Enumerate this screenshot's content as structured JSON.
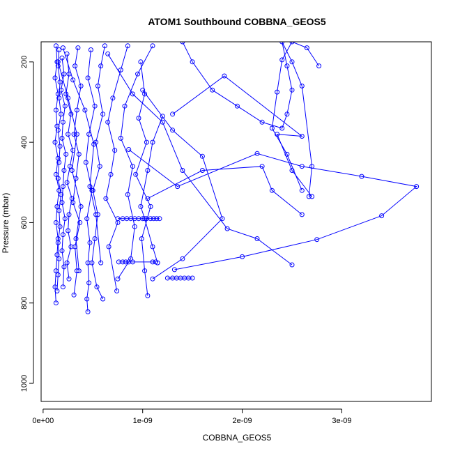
{
  "chart_data": {
    "type": "line",
    "title": "ATOM1 Southbound COBBNA_GEOS5",
    "xlabel": "COBBNA_GEOS5",
    "ylabel": "Pressure (mbar)",
    "xlim": [
      -2e-11,
      3.9e-09
    ],
    "ylim": [
      1045,
      150
    ],
    "y_reversed": true,
    "marker": "open-circle",
    "series_color": "#0000ff",
    "x_ticks": [
      0,
      1e-09,
      2e-09,
      3e-09
    ],
    "x_tick_labels": [
      "0e+00",
      "1e-09",
      "2e-09",
      "3e-09"
    ],
    "y_ticks": [
      200,
      400,
      600,
      800,
      1000
    ],
    "y_tick_labels": [
      "200",
      "400",
      "600",
      "800",
      "1000"
    ],
    "grid": false,
    "legend": "none",
    "series": [
      {
        "x": [
          1.3e-10,
          1.4e-10,
          1.2e-10,
          1.5e-10,
          1.3e-10,
          1.4e-10,
          1.2e-10,
          1.5e-10,
          1.3e-10,
          1.6e-10,
          1.4e-10,
          1.3e-10,
          1.5e-10,
          1.4e-10,
          1.3e-10,
          1.2e-10,
          1.3e-10
        ],
        "y": [
          160,
          200,
          240,
          280,
          320,
          360,
          400,
          440,
          480,
          520,
          560,
          600,
          640,
          680,
          720,
          760,
          800
        ]
      },
      {
        "x": [
          1.6e-10,
          1.5e-10,
          1.7e-10,
          1.6e-10,
          1.8e-10,
          1.5e-10,
          1.7e-10,
          1.6e-10,
          1.5e-10,
          1.8e-10,
          1.6e-10,
          1.7e-10,
          1.5e-10,
          1.6e-10,
          1.5e-10,
          1.4e-10
        ],
        "y": [
          170,
          210,
          250,
          290,
          330,
          370,
          410,
          450,
          490,
          530,
          570,
          610,
          650,
          690,
          730,
          770
        ]
      },
      {
        "x": [
          1.9e-10,
          2.1e-10,
          1.8e-10,
          2.2e-10,
          2e-10,
          1.9e-10,
          2.3e-10,
          2.1e-10,
          2e-10,
          1.9e-10,
          2.2e-10,
          2e-10,
          1.9e-10,
          2.1e-10,
          2e-10
        ],
        "y": [
          190,
          230,
          270,
          310,
          350,
          390,
          430,
          470,
          510,
          550,
          590,
          630,
          670,
          710,
          760
        ]
      },
      {
        "x": [
          2.4e-10,
          2.6e-10,
          2.3e-10,
          2.8e-10,
          2.5e-10,
          3e-10,
          2.7e-10,
          2.4e-10,
          2.9e-10,
          2.6e-10,
          2.5e-10,
          2.8e-10,
          2.4e-10,
          2.6e-10
        ],
        "y": [
          180,
          230,
          280,
          330,
          380,
          420,
          460,
          500,
          540,
          580,
          620,
          660,
          700,
          740
        ]
      },
      {
        "x": [
          3.5e-10,
          3.2e-10,
          3.8e-10,
          3.4e-10,
          3.1e-10,
          3.6e-10,
          3.3e-10,
          3e-10,
          3.7e-10,
          3.2e-10,
          3.4e-10,
          3.1e-10
        ],
        "y": [
          165,
          210,
          260,
          320,
          380,
          430,
          490,
          550,
          600,
          660,
          720,
          780
        ]
      },
      {
        "x": [
          4.8e-10,
          4.5e-10,
          5.2e-10,
          4.6e-10,
          4.3e-10,
          4.9e-10,
          4.4e-10,
          4.7e-10,
          4.5e-10,
          4.6e-10,
          4.4e-10,
          4.5e-10
        ],
        "y": [
          170,
          240,
          310,
          380,
          450,
          520,
          590,
          650,
          700,
          750,
          790,
          822
        ]
      },
      {
        "x": [
          6.2e-10,
          5.8e-10,
          5.5e-10,
          6e-10,
          5.3e-10,
          5.7e-10,
          5e-10,
          5.5e-10,
          5.2e-10,
          4.9e-10,
          5.4e-10,
          6e-10
        ],
        "y": [
          160,
          210,
          260,
          330,
          400,
          460,
          520,
          580,
          640,
          700,
          760,
          790
        ]
      },
      {
        "x": [
          8.5e-10,
          7.8e-10,
          7e-10,
          6.5e-10,
          7.2e-10,
          6.8e-10,
          6.3e-10,
          7.5e-10,
          6.6e-10,
          7.4e-10
        ],
        "y": [
          160,
          220,
          290,
          350,
          420,
          480,
          540,
          600,
          660,
          770
        ]
      },
      {
        "x": [
          1.1e-09,
          9.5e-10,
          8.2e-10,
          7.8e-10,
          9e-10,
          8.5e-10,
          9.2e-10,
          8.8e-10,
          7.5e-10
        ],
        "y": [
          160,
          230,
          310,
          390,
          460,
          530,
          610,
          690,
          740
        ]
      },
      {
        "x": [
          9.8e-10,
          1.02e-09,
          9.6e-10,
          1.04e-09,
          9.3e-10,
          1.08e-09,
          9.9e-10,
          1.02e-09,
          1.05e-09
        ],
        "y": [
          200,
          280,
          340,
          400,
          480,
          560,
          640,
          720,
          782
        ]
      },
      {
        "x": [
          1.2e-09,
          1.1e-09,
          1.05e-09,
          9.8e-10,
          1.02e-09,
          1.1e-09,
          1.15e-09
        ],
        "y": [
          335,
          400,
          470,
          560,
          590,
          660,
          700
        ]
      },
      {
        "x": [
          7.5e-10,
          8e-10,
          8.4e-10,
          8.8e-10,
          9.2e-10,
          9.6e-10,
          1e-09,
          1.04e-09,
          1.08e-09,
          1.11e-09,
          1.14e-09,
          1.17e-09
        ],
        "y": [
          590,
          590,
          590,
          590,
          590,
          590,
          590,
          590,
          590,
          590,
          590,
          590
        ]
      },
      {
        "x": [
          7.6e-10,
          8e-10,
          8.3e-10,
          8.6e-10,
          9e-10,
          1.1e-09,
          1.13e-09
        ],
        "y": [
          698,
          698,
          698,
          698,
          698,
          698,
          698
        ]
      },
      {
        "x": [
          1.25e-09,
          1.3e-09,
          1.34e-09,
          1.38e-09,
          1.42e-09,
          1.46e-09,
          1.5e-09
        ],
        "y": [
          738,
          738,
          738,
          738,
          738,
          738,
          738
        ]
      },
      {
        "x": [
          8.6e-10,
          1.35e-09,
          2.15e-09,
          2.6e-09,
          3.2e-09,
          3.75e-09,
          3.4e-09,
          2.75e-09,
          2e-09,
          1.32e-09
        ],
        "y": [
          418,
          510,
          428,
          460,
          485,
          510,
          583,
          642,
          685,
          717
        ]
      },
      {
        "x": [
          1e-09,
          1.3e-09,
          1.6e-09,
          1.8e-09,
          1.4e-09,
          1.1e-09
        ],
        "y": [
          270,
          370,
          435,
          590,
          690,
          740
        ]
      },
      {
        "x": [
          1.4e-09,
          1.5e-09,
          1.7e-09,
          1.95e-09,
          2.2e-09,
          2.4e-09,
          2.45e-09,
          2.5e-09,
          2.45e-09,
          2.4e-09,
          2.5e-09,
          2.6e-09,
          2.7e-09,
          2.67e-09
        ],
        "y": [
          150,
          200,
          270,
          310,
          350,
          365,
          330,
          270,
          210,
          150,
          200,
          260,
          460,
          535
        ]
      },
      {
        "x": [
          2.77e-09,
          2.65e-09,
          2.5e-09,
          2.4e-09,
          2.35e-09,
          2.3e-09,
          2.45e-09,
          2.6e-09
        ],
        "y": [
          210,
          165,
          150,
          195,
          275,
          365,
          430,
          520
        ]
      },
      {
        "x": [
          1.3e-09,
          1.82e-09,
          2.6e-09,
          2.35e-09,
          2.5e-09,
          2.7e-09
        ],
        "y": [
          330,
          235,
          385,
          380,
          470,
          535
        ]
      },
      {
        "x": [
          1.05e-09,
          1.6e-09,
          2.2e-09,
          2.3e-09,
          2.6e-09
        ],
        "y": [
          540,
          470,
          460,
          520,
          580
        ]
      },
      {
        "x": [
          6.5e-10,
          9e-10,
          1.2e-09,
          1.4e-09,
          1.85e-09,
          2.15e-09,
          2.5e-09
        ],
        "y": [
          180,
          280,
          350,
          470,
          615,
          640,
          705
        ]
      },
      {
        "x": [
          2e-10,
          3e-10,
          4.2e-10,
          5.1e-10,
          4.7e-10,
          5.3e-10,
          5.8e-10
        ],
        "y": [
          165,
          245,
          320,
          405,
          510,
          580,
          700
        ]
      },
      {
        "x": [
          1.5e-10,
          2.5e-10,
          3.4e-10,
          2.9e-10,
          3.8e-10,
          3.3e-10,
          3.6e-10
        ],
        "y": [
          200,
          290,
          380,
          470,
          560,
          640,
          720
        ]
      }
    ]
  }
}
